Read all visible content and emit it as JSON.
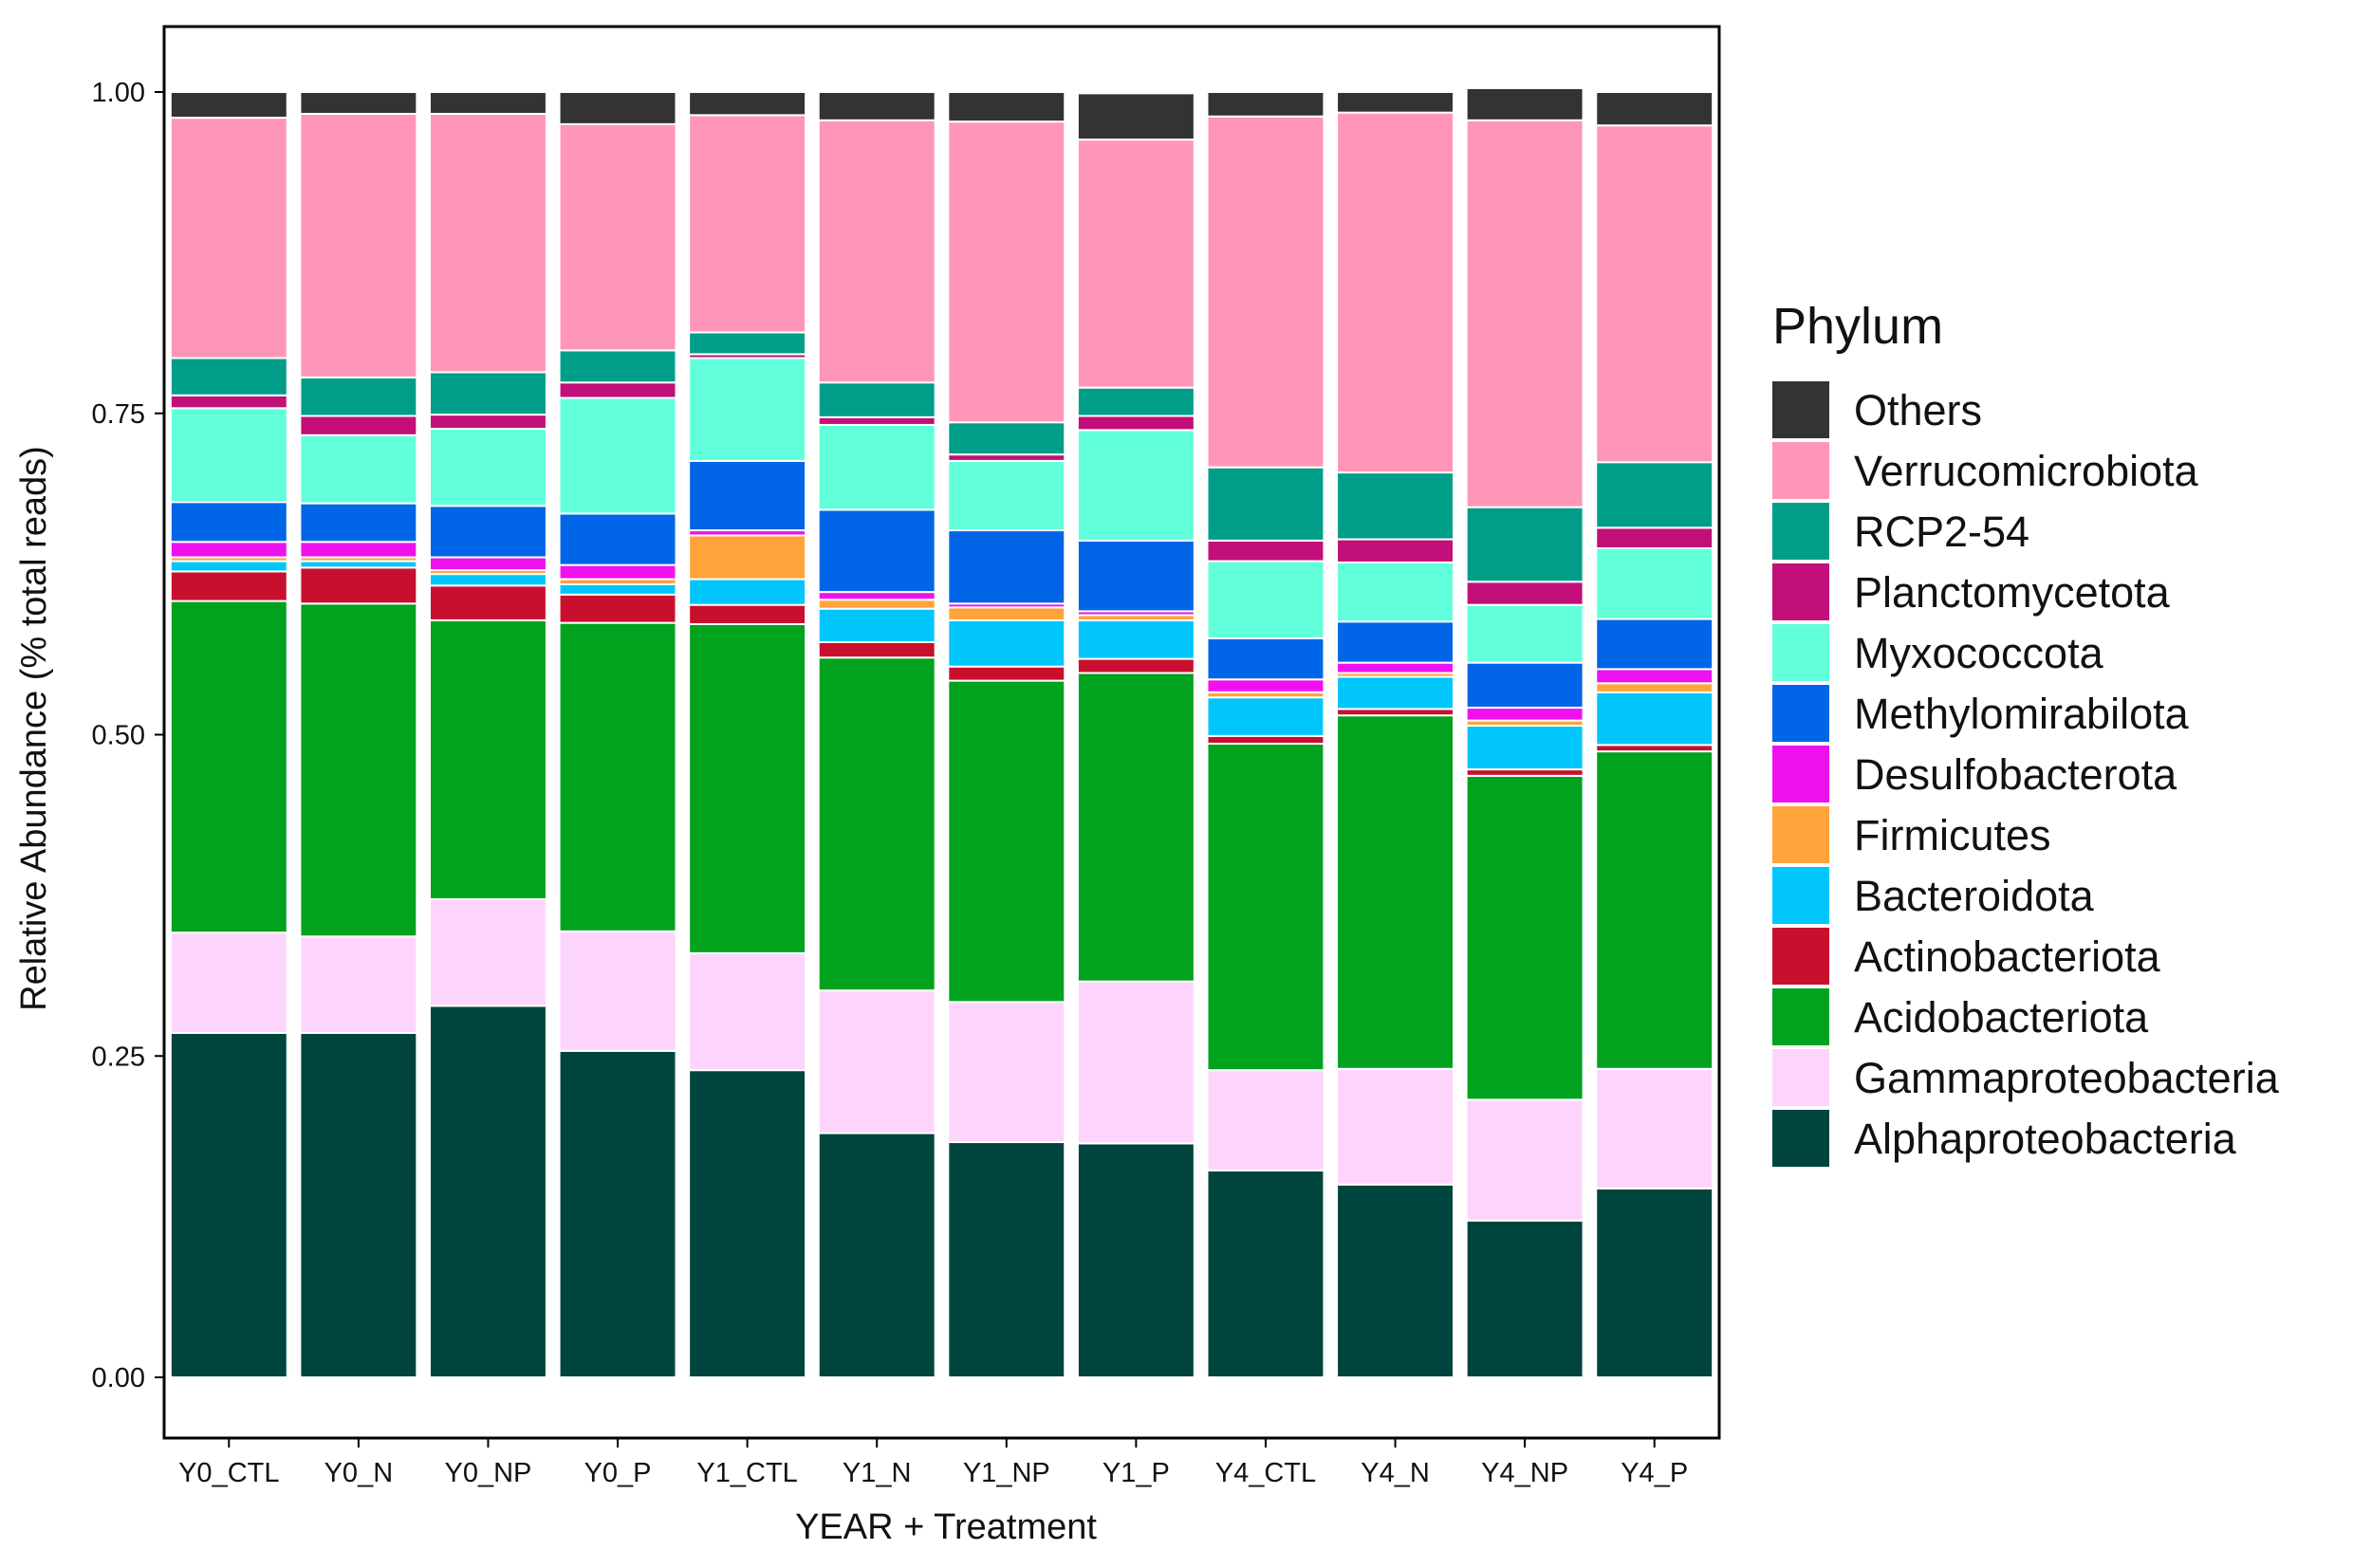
{
  "chart_data": {
    "type": "bar",
    "stacked": true,
    "xlabel": "YEAR + Treatment",
    "ylabel": "Relative Abundance (% total reads)",
    "ylim": [
      -0.05,
      1.05
    ],
    "yticks": [
      0.0,
      0.25,
      0.5,
      0.75,
      1.0
    ],
    "ytick_labels": [
      "0.00",
      "0.25",
      "0.50",
      "0.75",
      "1.00"
    ],
    "categories": [
      "Y0_CTL",
      "Y0_N",
      "Y0_NP",
      "Y0_P",
      "Y1_CTL",
      "Y1_N",
      "Y1_NP",
      "Y1_P",
      "Y4_CTL",
      "Y4_N",
      "Y4_NP",
      "Y4_P"
    ],
    "legend": {
      "title": "Phylum",
      "position": "right"
    },
    "series": [
      {
        "name": "Alphaproteobacteria",
        "color": "#00453D",
        "values": [
          0.268,
          0.268,
          0.289,
          0.254,
          0.239,
          0.19,
          0.183,
          0.182,
          0.161,
          0.15,
          0.122,
          0.147
        ]
      },
      {
        "name": "Gammaproteobacteria",
        "color": "#FDD5FC",
        "values": [
          0.078,
          0.075,
          0.083,
          0.093,
          0.091,
          0.111,
          0.109,
          0.126,
          0.078,
          0.09,
          0.094,
          0.093
        ]
      },
      {
        "name": "Acidobacteriota",
        "color": "#00A21E",
        "values": [
          0.258,
          0.259,
          0.217,
          0.24,
          0.256,
          0.259,
          0.25,
          0.24,
          0.254,
          0.275,
          0.252,
          0.247
        ]
      },
      {
        "name": "Actinobacteriota",
        "color": "#C8102E",
        "values": [
          0.023,
          0.028,
          0.027,
          0.022,
          0.015,
          0.012,
          0.011,
          0.011,
          0.006,
          0.005,
          0.005,
          0.005
        ]
      },
      {
        "name": "Bacteroidota",
        "color": "#00C6FB",
        "values": [
          0.008,
          0.005,
          0.009,
          0.008,
          0.02,
          0.026,
          0.036,
          0.03,
          0.03,
          0.025,
          0.034,
          0.041
        ]
      },
      {
        "name": "Firmicutes",
        "color": "#FFA33A",
        "values": [
          0.003,
          0.003,
          0.003,
          0.004,
          0.034,
          0.007,
          0.01,
          0.004,
          0.004,
          0.003,
          0.004,
          0.007
        ]
      },
      {
        "name": "Desulfobacterota",
        "color": "#EE11EE",
        "values": [
          0.012,
          0.012,
          0.01,
          0.011,
          0.004,
          0.006,
          0.003,
          0.003,
          0.01,
          0.008,
          0.01,
          0.011
        ]
      },
      {
        "name": "Methylomirabilota",
        "color": "#0065E6",
        "values": [
          0.031,
          0.03,
          0.04,
          0.04,
          0.054,
          0.064,
          0.057,
          0.055,
          0.032,
          0.032,
          0.035,
          0.039
        ]
      },
      {
        "name": "Myxococcota",
        "color": "#61FFDA",
        "values": [
          0.073,
          0.053,
          0.06,
          0.09,
          0.08,
          0.066,
          0.054,
          0.086,
          0.06,
          0.046,
          0.045,
          0.055
        ]
      },
      {
        "name": "Planctomycetota",
        "color": "#C20F79",
        "values": [
          0.01,
          0.015,
          0.011,
          0.012,
          0.003,
          0.006,
          0.005,
          0.011,
          0.016,
          0.018,
          0.018,
          0.016
        ]
      },
      {
        "name": "RCP2-54",
        "color": "#009E89",
        "values": [
          0.029,
          0.03,
          0.033,
          0.025,
          0.017,
          0.027,
          0.025,
          0.022,
          0.057,
          0.052,
          0.058,
          0.051
        ]
      },
      {
        "name": "Verrucomicrobiota",
        "color": "#FF96B9",
        "values": [
          0.187,
          0.205,
          0.201,
          0.176,
          0.169,
          0.204,
          0.234,
          0.193,
          0.273,
          0.28,
          0.301,
          0.262
        ]
      },
      {
        "name": "Others",
        "color": "#333333",
        "values": [
          0.02,
          0.017,
          0.017,
          0.025,
          0.018,
          0.022,
          0.023,
          0.036,
          0.019,
          0.016,
          0.025,
          0.026
        ]
      }
    ]
  }
}
